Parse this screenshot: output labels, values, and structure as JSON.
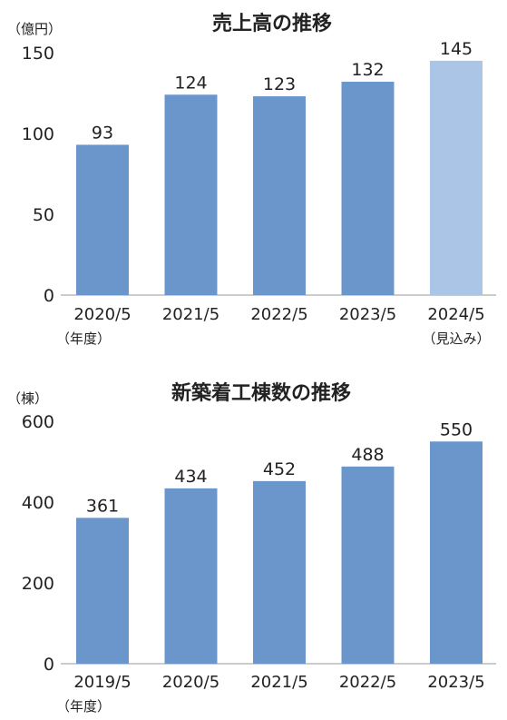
{
  "colors": {
    "bar": "#6a96cb",
    "bar_forecast": "#aac5e6"
  },
  "chart_data": [
    {
      "type": "bar",
      "title": "売上高の推移",
      "unit_label": "（億円）",
      "categories": [
        "2020/5",
        "2021/5",
        "2022/5",
        "2023/5",
        "2024/5"
      ],
      "category_sublabels": [
        "（年度）",
        "",
        "",
        "",
        "（見込み）"
      ],
      "values": [
        93,
        124,
        123,
        132,
        145
      ],
      "forecast_index": 4,
      "yticks": [
        0,
        50,
        100,
        150
      ],
      "ylim": [
        0,
        150
      ]
    },
    {
      "type": "bar",
      "title": "新築着工棟数の推移",
      "unit_label": "（棟）",
      "categories": [
        "2019/5",
        "2020/5",
        "2021/5",
        "2022/5",
        "2023/5"
      ],
      "category_sublabels": [
        "（年度）",
        "",
        "",
        "",
        ""
      ],
      "values": [
        361,
        434,
        452,
        488,
        550
      ],
      "forecast_index": -1,
      "yticks": [
        0,
        200,
        400,
        600
      ],
      "ylim": [
        0,
        600
      ]
    }
  ]
}
